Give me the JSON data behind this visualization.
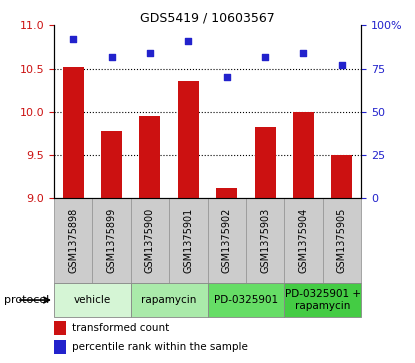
{
  "title": "GDS5419 / 10603567",
  "samples": [
    "GSM1375898",
    "GSM1375899",
    "GSM1375900",
    "GSM1375901",
    "GSM1375902",
    "GSM1375903",
    "GSM1375904",
    "GSM1375905"
  ],
  "bar_values": [
    10.52,
    9.78,
    9.95,
    10.36,
    9.12,
    9.82,
    10.0,
    9.5
  ],
  "dot_values": [
    92,
    82,
    84,
    91,
    70,
    82,
    84,
    77
  ],
  "ylim_left": [
    9.0,
    11.0
  ],
  "ylim_right": [
    0,
    100
  ],
  "yticks_left": [
    9.0,
    9.5,
    10.0,
    10.5,
    11.0
  ],
  "yticks_right": [
    0,
    25,
    50,
    75,
    100
  ],
  "bar_color": "#cc1111",
  "dot_color": "#2222cc",
  "bar_bottom": 9.0,
  "bar_width": 0.55,
  "protocols": [
    {
      "label": "vehicle",
      "start": 0,
      "end": 2,
      "color": "#d5f5d5"
    },
    {
      "label": "rapamycin",
      "start": 2,
      "end": 4,
      "color": "#aaeaaa"
    },
    {
      "label": "PD-0325901",
      "start": 4,
      "end": 6,
      "color": "#66dd66"
    },
    {
      "label": "PD-0325901 +\nrapamycin",
      "start": 6,
      "end": 8,
      "color": "#44cc44"
    }
  ],
  "legend_red_label": "transformed count",
  "legend_blue_label": "percentile rank within the sample",
  "protocol_label": "protocol",
  "background_color": "#ffffff",
  "sample_bg_color": "#cccccc",
  "sample_border_color": "#999999",
  "title_fontsize": 9,
  "tick_fontsize": 8,
  "sample_fontsize": 7,
  "proto_fontsize": 7.5,
  "legend_fontsize": 7.5
}
